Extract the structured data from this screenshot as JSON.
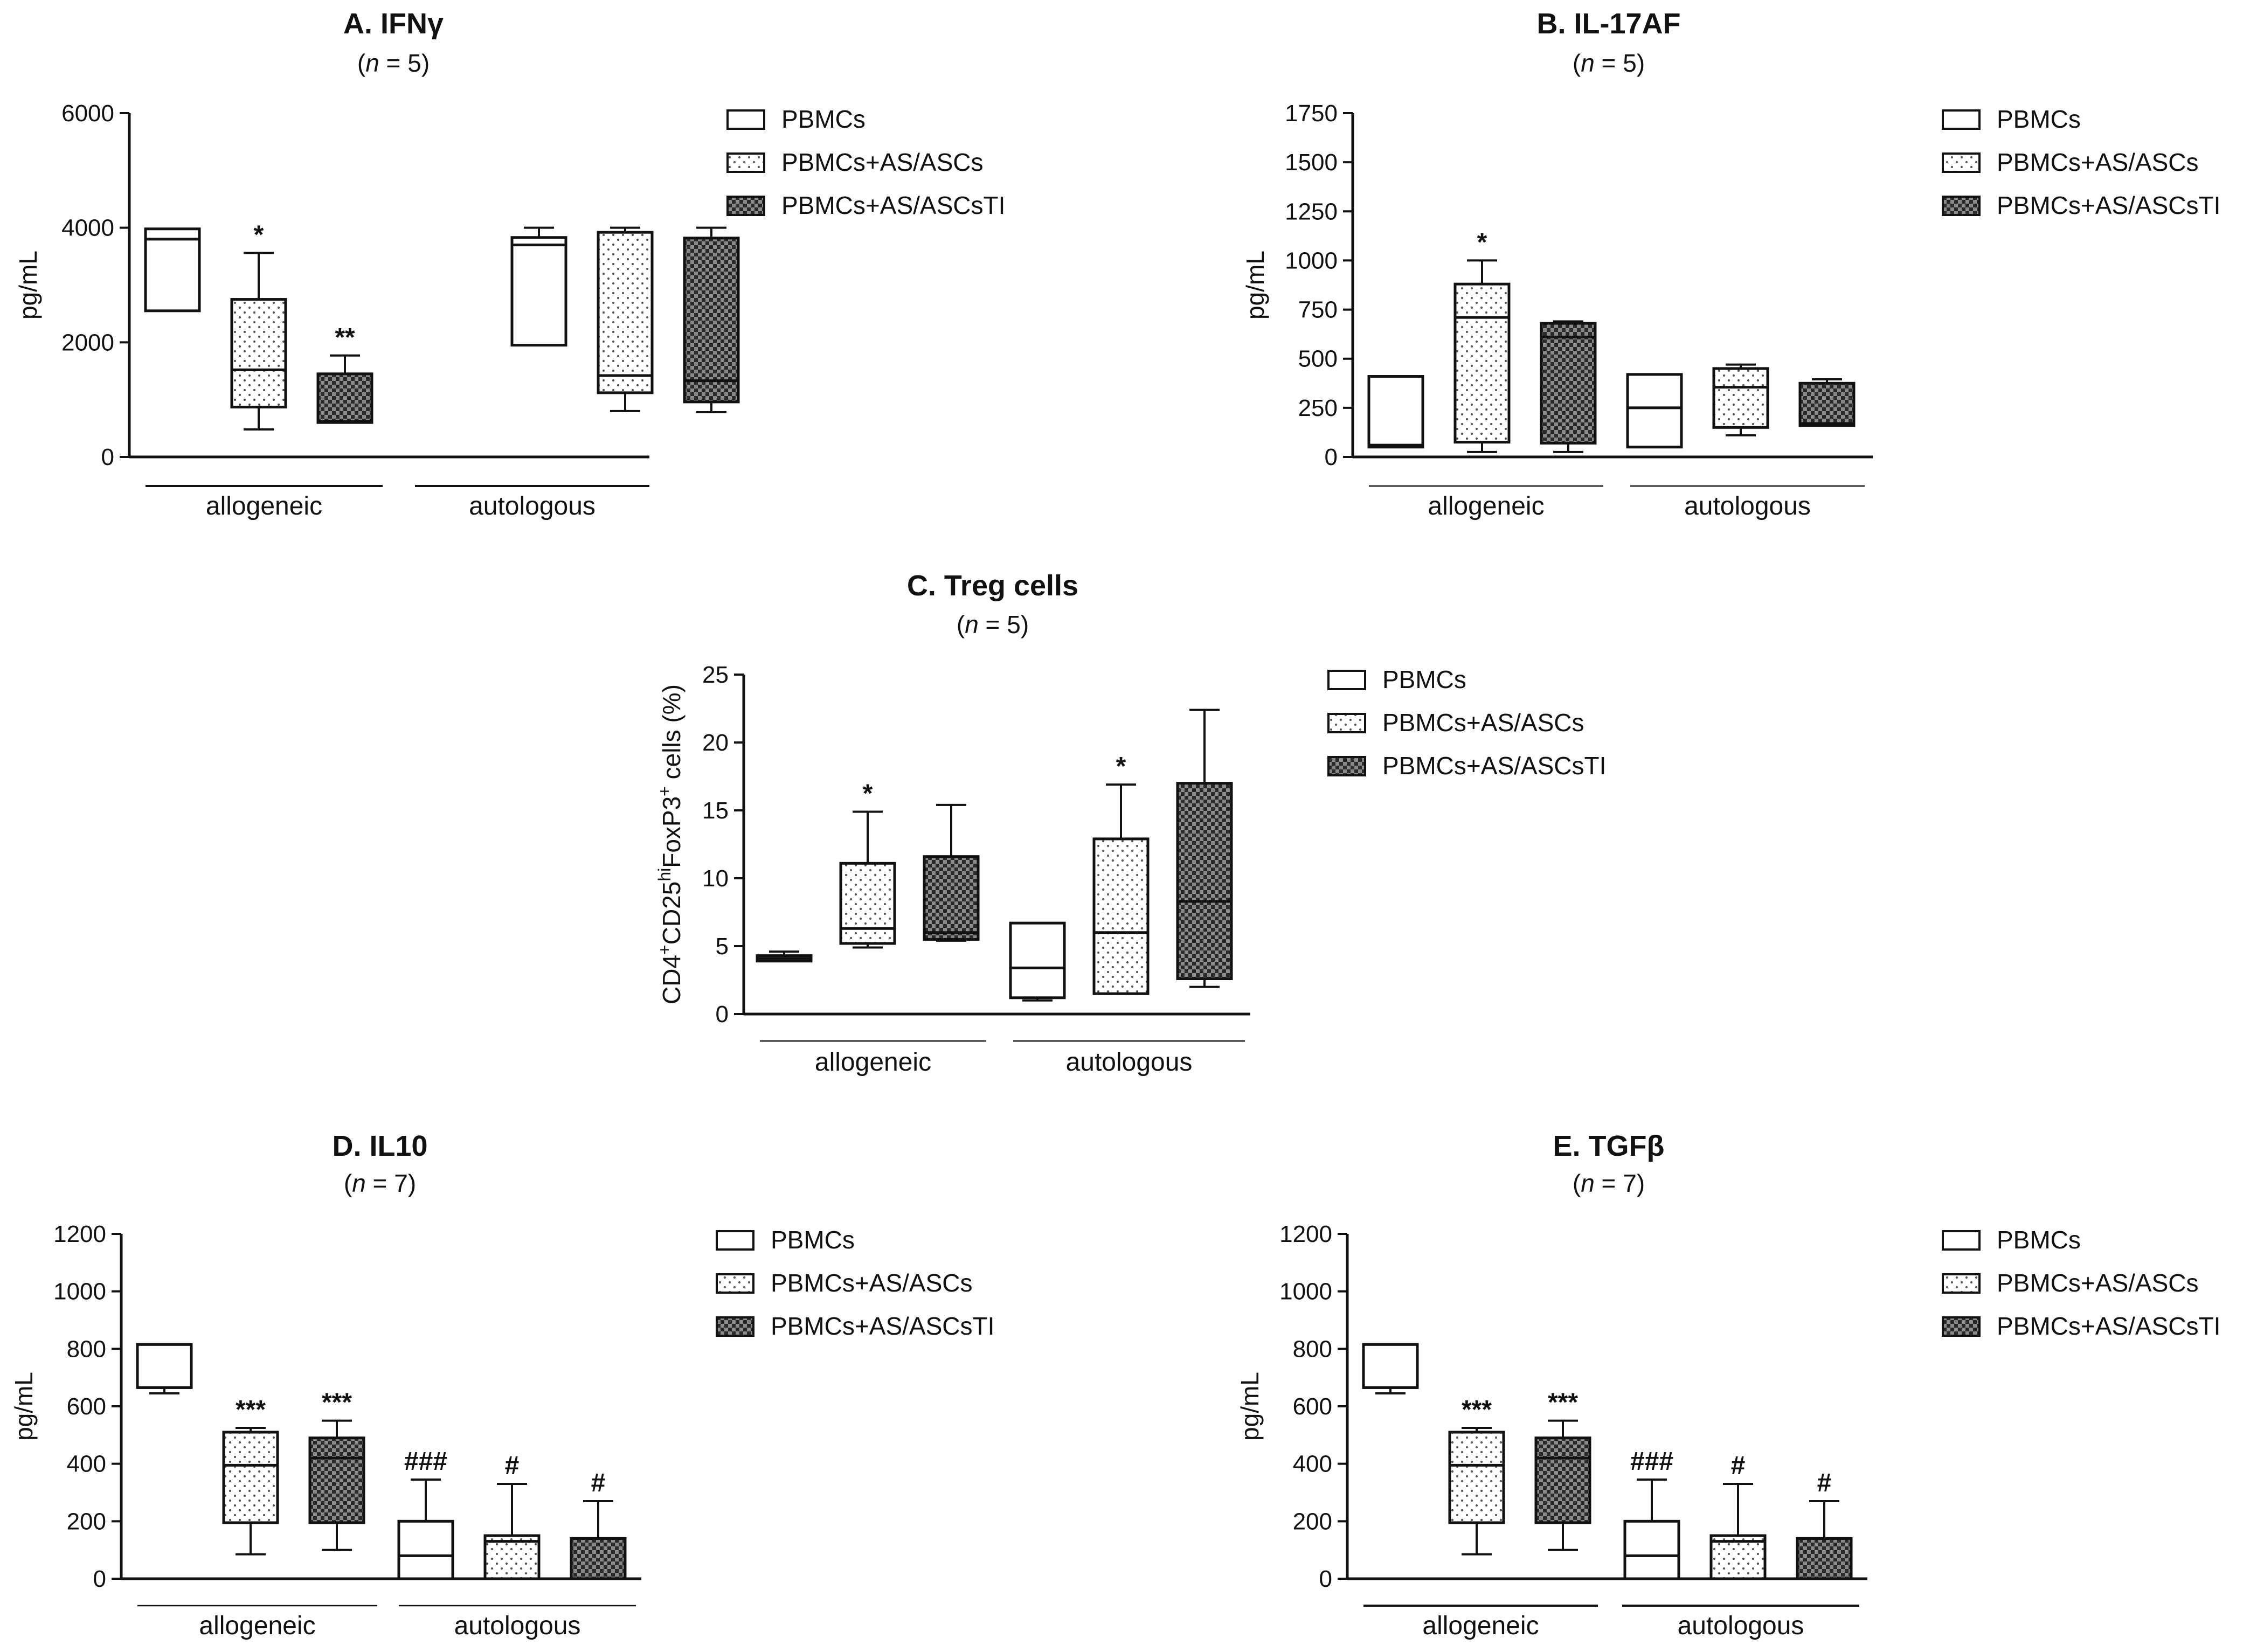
{
  "figure": {
    "legend_labels": [
      "PBMCs",
      "PBMCs+AS/ASCs",
      "PBMCs+AS/ASCsTI"
    ],
    "group_labels": [
      "allogeneic",
      "autologous"
    ]
  },
  "chart_data": [
    {
      "id": "A",
      "type": "box",
      "title": "A. IFNγ",
      "subtitle_n": "5",
      "ylabel": "pg/mL",
      "ylim": [
        0,
        6000
      ],
      "yticks": [
        "0",
        "2000",
        "4000",
        "6000"
      ],
      "groups": [
        "allogeneic",
        "autologous"
      ],
      "series": [
        "PBMCs",
        "PBMCs+AS/ASCs",
        "PBMCs+AS/ASCsTI"
      ],
      "boxes": [
        {
          "group": "allogeneic",
          "series": "PBMCs",
          "min": 2550,
          "q1": 2550,
          "median": 3800,
          "q3": 3980,
          "max": 3980,
          "sig": ""
        },
        {
          "group": "allogeneic",
          "series": "PBMCs+AS/ASCs",
          "min": 480,
          "q1": 870,
          "median": 1520,
          "q3": 2750,
          "max": 3560,
          "sig": "*"
        },
        {
          "group": "allogeneic",
          "series": "PBMCs+AS/ASCsTI",
          "min": 600,
          "q1": 600,
          "median": 620,
          "q3": 1450,
          "max": 1770,
          "sig": "**"
        },
        {
          "group": "autologous",
          "series": "PBMCs",
          "min": 1950,
          "q1": 1950,
          "median": 3700,
          "q3": 3830,
          "max": 4000,
          "sig": ""
        },
        {
          "group": "autologous",
          "series": "PBMCs+AS/ASCs",
          "min": 800,
          "q1": 1120,
          "median": 1420,
          "q3": 3920,
          "max": 4000,
          "sig": ""
        },
        {
          "group": "autologous",
          "series": "PBMCs+AS/ASCsTI",
          "min": 780,
          "q1": 960,
          "median": 1330,
          "q3": 3820,
          "max": 4000,
          "sig": ""
        }
      ]
    },
    {
      "id": "B",
      "type": "box",
      "title": "B. IL-17AF",
      "subtitle_n": "5",
      "ylabel": "pg/mL",
      "ylim": [
        0,
        1750
      ],
      "yticks": [
        "0",
        "250",
        "500",
        "750",
        "1000",
        "1250",
        "1500",
        "1750"
      ],
      "groups": [
        "allogeneic",
        "autologous"
      ],
      "series": [
        "PBMCs",
        "PBMCs+AS/ASCs",
        "PBMCs+AS/ASCsTI"
      ],
      "boxes": [
        {
          "group": "allogeneic",
          "series": "PBMCs",
          "min": 50,
          "q1": 50,
          "median": 60,
          "q3": 410,
          "max": 410,
          "sig": ""
        },
        {
          "group": "allogeneic",
          "series": "PBMCs+AS/ASCs",
          "min": 25,
          "q1": 75,
          "median": 710,
          "q3": 880,
          "max": 1000,
          "sig": "*"
        },
        {
          "group": "allogeneic",
          "series": "PBMCs+AS/ASCsTI",
          "min": 25,
          "q1": 70,
          "median": 610,
          "q3": 680,
          "max": 690,
          "sig": ""
        },
        {
          "group": "autologous",
          "series": "PBMCs",
          "min": 50,
          "q1": 50,
          "median": 250,
          "q3": 420,
          "max": 420,
          "sig": ""
        },
        {
          "group": "autologous",
          "series": "PBMCs+AS/ASCs",
          "min": 110,
          "q1": 150,
          "median": 355,
          "q3": 450,
          "max": 470,
          "sig": ""
        },
        {
          "group": "autologous",
          "series": "PBMCs+AS/ASCsTI",
          "min": 160,
          "q1": 160,
          "median": 170,
          "q3": 375,
          "max": 395,
          "sig": ""
        }
      ]
    },
    {
      "id": "C",
      "type": "box",
      "title": "C. Treg cells",
      "subtitle_n": "5",
      "ylabel": "CD4+CD25hiFoxP3+ cells (%)",
      "ylim": [
        0,
        25
      ],
      "yticks": [
        "0",
        "5",
        "10",
        "15",
        "20",
        "25"
      ],
      "groups": [
        "allogeneic",
        "autologous"
      ],
      "series": [
        "PBMCs",
        "PBMCs+AS/ASCs",
        "PBMCs+AS/ASCsTI"
      ],
      "boxes": [
        {
          "group": "allogeneic",
          "series": "PBMCs",
          "min": 3.9,
          "q1": 3.9,
          "median": 4.1,
          "q3": 4.3,
          "max": 4.6,
          "sig": ""
        },
        {
          "group": "allogeneic",
          "series": "PBMCs+AS/ASCs",
          "min": 4.9,
          "q1": 5.2,
          "median": 6.3,
          "q3": 11.1,
          "max": 14.9,
          "sig": "*"
        },
        {
          "group": "allogeneic",
          "series": "PBMCs+AS/ASCsTI",
          "min": 5.4,
          "q1": 5.5,
          "median": 6.0,
          "q3": 11.6,
          "max": 15.4,
          "sig": ""
        },
        {
          "group": "autologous",
          "series": "PBMCs",
          "min": 1.0,
          "q1": 1.2,
          "median": 3.4,
          "q3": 6.7,
          "max": 6.7,
          "sig": ""
        },
        {
          "group": "autologous",
          "series": "PBMCs+AS/ASCs",
          "min": 1.5,
          "q1": 1.5,
          "median": 6.0,
          "q3": 12.9,
          "max": 16.9,
          "sig": "*"
        },
        {
          "group": "autologous",
          "series": "PBMCs+AS/ASCsTI",
          "min": 2.0,
          "q1": 2.6,
          "median": 8.3,
          "q3": 17.0,
          "max": 22.4,
          "sig": ""
        }
      ]
    },
    {
      "id": "D",
      "type": "box",
      "title": "D. IL10",
      "subtitle_n": "7",
      "ylabel": "pg/mL",
      "ylim": [
        0,
        1200
      ],
      "yticks": [
        "0",
        "200",
        "400",
        "600",
        "800",
        "1000",
        "1200"
      ],
      "groups": [
        "allogeneic",
        "autologous"
      ],
      "series": [
        "PBMCs",
        "PBMCs+AS/ASCs",
        "PBMCs+AS/ASCsTI"
      ],
      "boxes": [
        {
          "group": "allogeneic",
          "series": "PBMCs",
          "min": 645,
          "q1": 665,
          "median": 665,
          "q3": 815,
          "max": 815,
          "sig": ""
        },
        {
          "group": "allogeneic",
          "series": "PBMCs+AS/ASCs",
          "min": 85,
          "q1": 195,
          "median": 395,
          "q3": 510,
          "max": 525,
          "sig": "***"
        },
        {
          "group": "allogeneic",
          "series": "PBMCs+AS/ASCsTI",
          "min": 100,
          "q1": 195,
          "median": 420,
          "q3": 490,
          "max": 550,
          "sig": "***"
        },
        {
          "group": "autologous",
          "series": "PBMCs",
          "min": 0,
          "q1": 0,
          "median": 80,
          "q3": 200,
          "max": 345,
          "sig": "###"
        },
        {
          "group": "autologous",
          "series": "PBMCs+AS/ASCs",
          "min": 0,
          "q1": 0,
          "median": 130,
          "q3": 150,
          "max": 330,
          "sig": "#"
        },
        {
          "group": "autologous",
          "series": "PBMCs+AS/ASCsTI",
          "min": 0,
          "q1": 0,
          "median": 140,
          "q3": 140,
          "max": 270,
          "sig": "#"
        }
      ]
    },
    {
      "id": "E",
      "type": "box",
      "title": "E. TGFβ",
      "subtitle_n": "7",
      "ylabel": "pg/mL",
      "ylim": [
        0,
        1200
      ],
      "yticks": [
        "0",
        "200",
        "400",
        "600",
        "800",
        "1000",
        "1200"
      ],
      "groups": [
        "allogeneic",
        "autologous"
      ],
      "series": [
        "PBMCs",
        "PBMCs+AS/ASCs",
        "PBMCs+AS/ASCsTI"
      ],
      "boxes": [
        {
          "group": "allogeneic",
          "series": "PBMCs",
          "min": 645,
          "q1": 665,
          "median": 665,
          "q3": 815,
          "max": 815,
          "sig": ""
        },
        {
          "group": "allogeneic",
          "series": "PBMCs+AS/ASCs",
          "min": 85,
          "q1": 195,
          "median": 395,
          "q3": 510,
          "max": 525,
          "sig": "***"
        },
        {
          "group": "allogeneic",
          "series": "PBMCs+AS/ASCsTI",
          "min": 100,
          "q1": 195,
          "median": 420,
          "q3": 490,
          "max": 550,
          "sig": "***"
        },
        {
          "group": "autologous",
          "series": "PBMCs",
          "min": 0,
          "q1": 0,
          "median": 80,
          "q3": 200,
          "max": 345,
          "sig": "###"
        },
        {
          "group": "autologous",
          "series": "PBMCs+AS/ASCs",
          "min": 0,
          "q1": 0,
          "median": 130,
          "q3": 150,
          "max": 330,
          "sig": "#"
        },
        {
          "group": "autologous",
          "series": "PBMCs+AS/ASCsTI",
          "min": 0,
          "q1": 0,
          "median": 140,
          "q3": 140,
          "max": 270,
          "sig": "#"
        }
      ]
    }
  ]
}
